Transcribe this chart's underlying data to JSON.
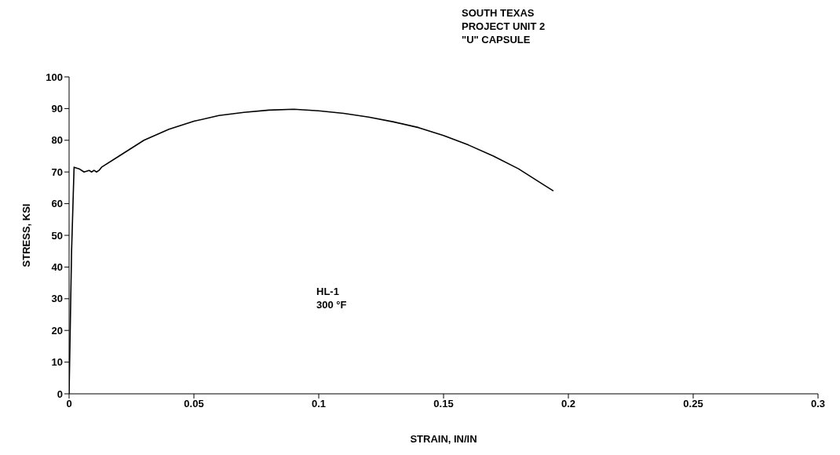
{
  "chart_data": {
    "type": "line",
    "title": "SOUTH TEXAS\nPROJECT UNIT 2\n\"U\" CAPSULE",
    "xlabel": "STRAIN, IN/IN",
    "ylabel": "STRESS, KSI",
    "annotations": [
      "HL-1",
      "300 °F"
    ],
    "x": [
      0,
      0.001,
      0.002,
      0.004,
      0.006,
      0.008,
      0.009,
      0.01,
      0.011,
      0.012,
      0.013,
      0.02,
      0.03,
      0.04,
      0.05,
      0.06,
      0.07,
      0.08,
      0.09,
      0.1,
      0.11,
      0.12,
      0.13,
      0.14,
      0.15,
      0.16,
      0.17,
      0.18,
      0.19,
      0.194
    ],
    "series": [
      {
        "color": "#000000",
        "values": [
          0,
          45,
          71.5,
          71,
          70,
          70.5,
          70,
          70.5,
          70,
          70.5,
          71.5,
          75,
          80,
          83.5,
          86,
          87.8,
          88.8,
          89.5,
          89.8,
          89.3,
          88.5,
          87.3,
          85.8,
          84,
          81.5,
          78.5,
          75,
          71,
          66,
          64
        ]
      }
    ],
    "xlim": [
      0,
      0.3
    ],
    "xticks": [
      0,
      0.05,
      0.1,
      0.15,
      0.2,
      0.25,
      0.3
    ],
    "ylim": [
      0,
      100
    ],
    "yticks": [
      0,
      10,
      20,
      30,
      40,
      50,
      60,
      70,
      80,
      90,
      100
    ],
    "marker": "none",
    "line_style": "solid"
  }
}
